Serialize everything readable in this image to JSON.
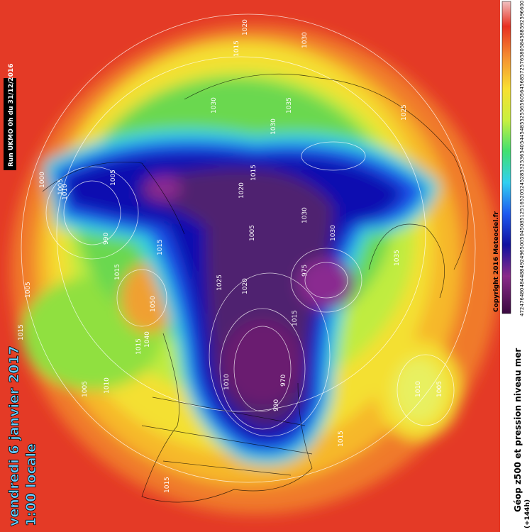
{
  "header": {
    "run": "Run UKMO 0h du 31/12/2016",
    "date": "vendredi 6 janvier 2017",
    "time": "1:00 locale"
  },
  "legend": {
    "title": "Géop z500 et pression niveau mer",
    "lead": "(+144h)",
    "copyright": "Copyright 2016 Meteociel.fr",
    "scale": [
      472,
      476,
      480,
      484,
      488,
      492,
      496,
      500,
      504,
      508,
      512,
      516,
      520,
      524,
      528,
      532,
      536,
      540,
      544,
      548,
      552,
      556,
      560,
      564,
      568,
      572,
      576,
      580,
      584,
      588,
      592,
      596,
      600
    ]
  },
  "isobar_labels": [
    "1020",
    "1015",
    "1030",
    "1030",
    "1035",
    "1030",
    "1025",
    "1000",
    "1005",
    "1010",
    "1005",
    "990",
    "1015",
    "1015",
    "1015",
    "1020",
    "1005",
    "1025",
    "1020",
    "1030",
    "1030",
    "975",
    "1015",
    "970",
    "990",
    "1015",
    "1010",
    "1015",
    "1005",
    "1010",
    "1050",
    "1015",
    "1010",
    "1005",
    "1015",
    "1005",
    "1035",
    "1040"
  ]
}
